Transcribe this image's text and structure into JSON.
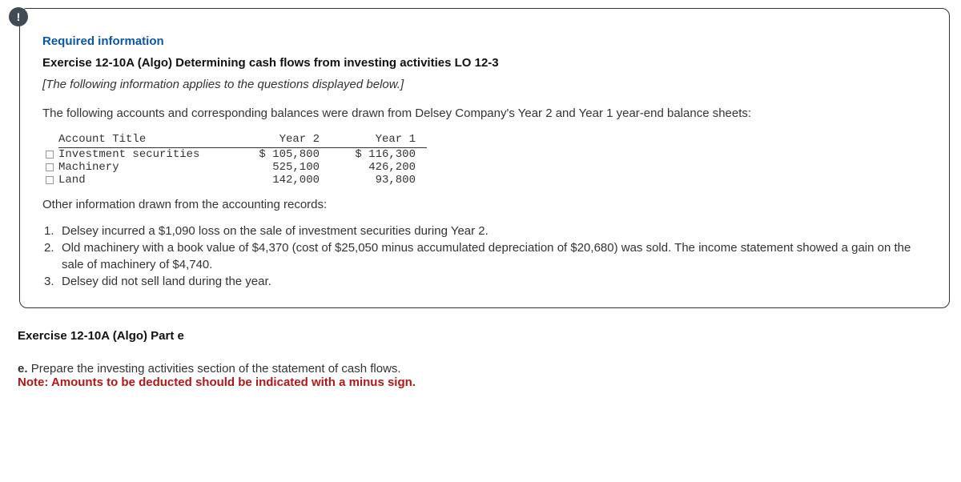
{
  "badge": "!",
  "required_info_label": "Required information",
  "exercise_title": "Exercise 12-10A (Algo) Determining cash flows from investing activities LO 12-3",
  "italic_note": "[The following information applies to the questions displayed below.]",
  "intro_para": "The following accounts and corresponding balances were drawn from Delsey Company's Year 2 and Year 1 year-end balance sheets:",
  "table": {
    "headers": {
      "title": "Account Title",
      "y2": "Year 2",
      "y1": "Year 1"
    },
    "rows": [
      {
        "title": "Investment securities",
        "y2": "$ 105,800",
        "y1": "$ 116,300"
      },
      {
        "title": "Machinery",
        "y2": "525,100",
        "y1": "426,200"
      },
      {
        "title": "Land",
        "y2": "142,000",
        "y1": "93,800"
      }
    ]
  },
  "other_info_label": "Other information drawn from the accounting records:",
  "list": [
    {
      "n": "1.",
      "text": "Delsey incurred a $1,090 loss on the sale of investment securities during Year 2."
    },
    {
      "n": "2.",
      "text": "Old machinery with a book value of $4,370 (cost of $25,050 minus accumulated depreciation of $20,680) was sold. The income statement showed a gain on the sale of machinery of $4,740."
    },
    {
      "n": "3.",
      "text": "Delsey did not sell land during the year."
    }
  ],
  "part_title": "Exercise 12-10A (Algo) Part e",
  "instruction_prefix": "e. ",
  "instruction": "Prepare the investing activities section of the statement of cash flows.",
  "note": "Note: Amounts to be deducted should be indicated with a minus sign."
}
